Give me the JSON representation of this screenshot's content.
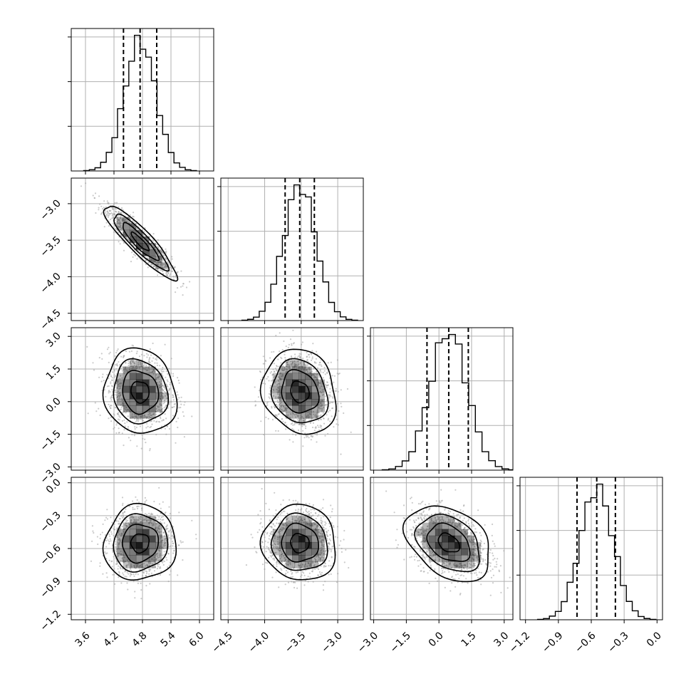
{
  "chart_data": {
    "type": "corner",
    "title": "",
    "grid": true,
    "parameters": [
      {
        "range": [
          3.3,
          6.3
        ],
        "mean": 4.75,
        "sd": 0.33,
        "quantiles": [
          4.4,
          4.75,
          5.1
        ],
        "tick_values": [
          3.6,
          4.2,
          4.8,
          5.4,
          6.0
        ],
        "tick_labels": [
          "3.6",
          "4.2",
          "4.8",
          "5.4",
          "6.0"
        ]
      },
      {
        "range": [
          -4.6,
          -2.65
        ],
        "mean": -3.52,
        "sd": 0.22,
        "quantiles": [
          -3.72,
          -3.52,
          -3.32
        ],
        "tick_values": [
          -4.5,
          -4.0,
          -3.5,
          -3.0
        ],
        "tick_labels": [
          "−4.5",
          "−4.0",
          "−3.5",
          "−3.0"
        ]
      },
      {
        "range": [
          -3.15,
          3.4
        ],
        "mean": 0.45,
        "sd": 0.85,
        "quantiles": [
          -0.55,
          0.45,
          1.35
        ],
        "tick_values": [
          -3.0,
          -1.5,
          0.0,
          1.5,
          3.0
        ],
        "tick_labels": [
          "−3.0",
          "−1.5",
          "0.0",
          "1.5",
          "3.0"
        ]
      },
      {
        "range": [
          -1.25,
          0.05
        ],
        "mean": -0.55,
        "sd": 0.15,
        "quantiles": [
          -0.73,
          -0.55,
          -0.38
        ],
        "tick_values": [
          -1.2,
          -0.9,
          -0.6,
          -0.3,
          0.0
        ],
        "tick_labels": [
          "−1.2",
          "−0.9",
          "−0.6",
          "−0.3",
          "0.0"
        ]
      }
    ],
    "correlations": [
      {
        "pair": [
          0,
          1
        ],
        "rho": -0.9
      },
      {
        "pair": [
          0,
          2
        ],
        "rho": -0.1
      },
      {
        "pair": [
          0,
          3
        ],
        "rho": 0.05
      },
      {
        "pair": [
          1,
          2
        ],
        "rho": -0.15
      },
      {
        "pair": [
          1,
          3
        ],
        "rho": -0.05
      },
      {
        "pair": [
          2,
          3
        ],
        "rho": -0.35
      }
    ],
    "histogram_bins": 20,
    "contour_levels": [
      0.5,
      1.0,
      1.5,
      2.0
    ],
    "colors": {
      "line": "#000000",
      "points": "#a0a0a0",
      "grid": "#b0b0b0",
      "density": "#000000"
    }
  }
}
